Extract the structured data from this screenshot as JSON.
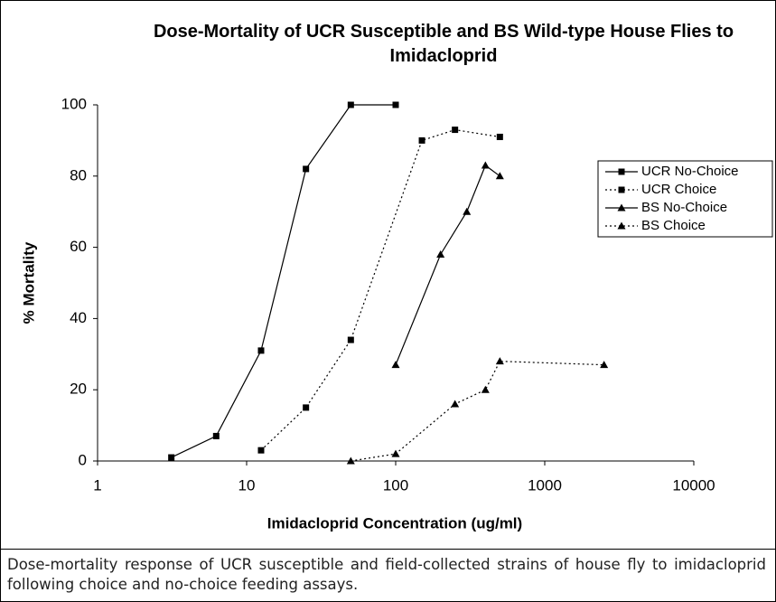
{
  "chart_data": {
    "type": "line",
    "title": "Dose-Mortality of UCR Susceptible and BS Wild-type House Flies to Imidacloprid",
    "xlabel": "Imidacloprid Concentration (ug/ml)",
    "ylabel": "% Mortality",
    "xscale": "log",
    "xlim": [
      1,
      10000
    ],
    "xticks": [
      1,
      10,
      100,
      1000,
      10000
    ],
    "ylim": [
      0,
      100
    ],
    "yticks": [
      0,
      20,
      40,
      60,
      80,
      100
    ],
    "grid": false,
    "legend": "upper right",
    "series": [
      {
        "name": "UCR No-Choice",
        "color": "#000000",
        "marker": "square",
        "dash": "solid",
        "x": [
          3.125,
          6.25,
          12.5,
          25,
          50,
          100
        ],
        "values": [
          1,
          7,
          31,
          82,
          100,
          100
        ]
      },
      {
        "name": "UCR Choice",
        "color": "#000000",
        "marker": "square",
        "dash": "dotted",
        "x": [
          12.5,
          25,
          50,
          150,
          250,
          500
        ],
        "values": [
          3,
          15,
          34,
          90,
          93,
          91
        ]
      },
      {
        "name": "BS No-Choice",
        "color": "#000000",
        "marker": "triangle",
        "dash": "solid",
        "x": [
          100,
          200,
          300,
          400,
          500
        ],
        "values": [
          27,
          58,
          70,
          83,
          80
        ]
      },
      {
        "name": "BS Choice",
        "color": "#000000",
        "marker": "triangle",
        "dash": "dotted",
        "x": [
          50,
          100,
          250,
          400,
          500,
          2500
        ],
        "values": [
          0,
          2,
          16,
          20,
          28,
          27
        ]
      }
    ]
  },
  "caption": "Dose-mortality response of UCR susceptible and field-collected strains of house fly to imidacloprid following choice and no-choice feeding assays."
}
